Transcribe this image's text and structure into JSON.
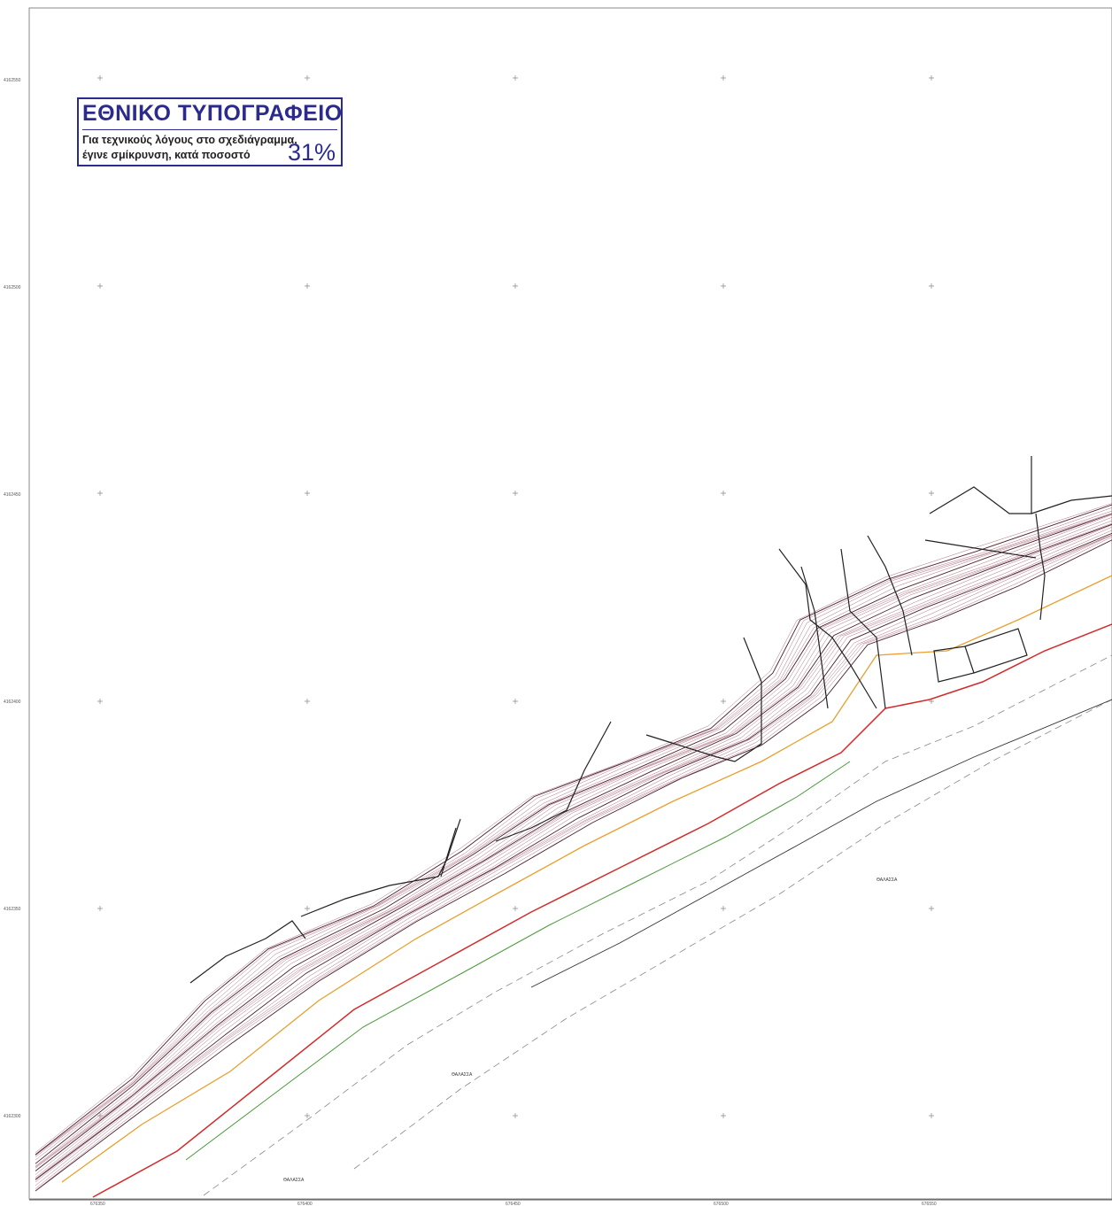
{
  "stamp": {
    "title": "ΕΘΝΙΚΟ ΤΥΠΟΓΡΑΦΕΙΟ",
    "line1": "Για τεχνικούς λόγους στο σχεδιάγραμμα,",
    "line2": "έγινε σμίκρυνση, κατά ποσοστό",
    "percent": "31%"
  },
  "map": {
    "northing_labels": [
      "4162550",
      "4162500",
      "4162450",
      "4162400",
      "4162350",
      "4162300"
    ],
    "easting_labels": [
      "676350",
      "676400",
      "676450",
      "676500",
      "676550"
    ],
    "sea_labels": [
      "ΘΑΛΑΣΣΑ",
      "ΘΑΛΑΣΣΑ",
      "ΘΑΛΑΣΣΑ"
    ],
    "colors": {
      "contour": "#b07080",
      "contour_major": "#4a2030",
      "boundary": "#222222",
      "shoreline_red": "#d42a2a",
      "line_orange": "#e8a030",
      "line_green": "#4a9a3a",
      "dashed": "#888888",
      "stamp": "#2b2b8f"
    }
  }
}
